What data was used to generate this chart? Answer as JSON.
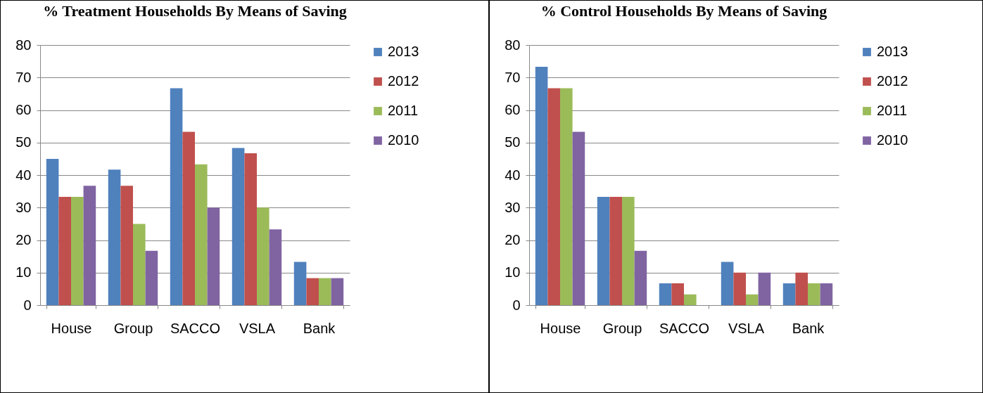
{
  "chart_data": [
    {
      "type": "bar",
      "title": "% Treatment Households By Means of Saving",
      "categories": [
        "House",
        "Group",
        "SACCO",
        "VSLA",
        "Bank"
      ],
      "series": [
        {
          "name": "2013",
          "color": "#4f81bd",
          "values": [
            45,
            41.7,
            66.7,
            48.3,
            13.3
          ]
        },
        {
          "name": "2012",
          "color": "#c0504d",
          "values": [
            33.3,
            36.7,
            53.3,
            46.7,
            8.3
          ]
        },
        {
          "name": "2011",
          "color": "#9bbb59",
          "values": [
            33.3,
            25,
            43.3,
            30,
            8.3
          ]
        },
        {
          "name": "2010",
          "color": "#8064a2",
          "values": [
            36.7,
            16.7,
            30,
            23.3,
            8.3
          ]
        }
      ],
      "ylim": [
        0,
        80
      ],
      "yticks": [
        0,
        10,
        20,
        30,
        40,
        50,
        60,
        70,
        80
      ],
      "grid": "y",
      "legend": "right"
    },
    {
      "type": "bar",
      "title": "% Control Households By Means of Saving",
      "categories": [
        "House",
        "Group",
        "SACCO",
        "VSLA",
        "Bank"
      ],
      "series": [
        {
          "name": "2013",
          "color": "#4f81bd",
          "values": [
            73.3,
            33.3,
            6.7,
            13.3,
            6.7
          ]
        },
        {
          "name": "2012",
          "color": "#c0504d",
          "values": [
            66.7,
            33.3,
            6.7,
            10,
            10
          ]
        },
        {
          "name": "2011",
          "color": "#9bbb59",
          "values": [
            66.7,
            33.3,
            3.3,
            3.3,
            6.7
          ]
        },
        {
          "name": "2010",
          "color": "#8064a2",
          "values": [
            53.3,
            16.7,
            0,
            10,
            6.7
          ]
        }
      ],
      "ylim": [
        0,
        80
      ],
      "yticks": [
        0,
        10,
        20,
        30,
        40,
        50,
        60,
        70,
        80
      ],
      "grid": "y",
      "legend": "right"
    }
  ]
}
